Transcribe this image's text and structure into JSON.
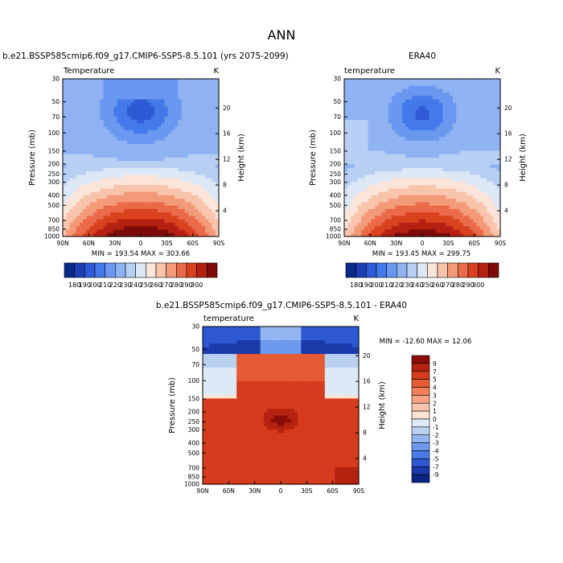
{
  "main_title": "ANN",
  "chart_data": [
    {
      "type": "heatmap",
      "panel": "model",
      "title": "b.e21.BSSP585cmip6.f09_g17.CMIP6-SSP5-8.5.101 (yrs 2075-2099)",
      "left_label": "Temperature",
      "right_label": "K",
      "ylabel": "Pressure (mb)",
      "ylabel_right": "Height (km)",
      "x_ticks": [
        "90N",
        "60N",
        "30N",
        "0",
        "30S",
        "60S",
        "90S"
      ],
      "y_ticks": [
        "30",
        "50",
        "70",
        "100",
        "150",
        "200",
        "250",
        "300",
        "400",
        "500",
        "700",
        "850",
        "1000"
      ],
      "y2_ticks": [
        "20",
        "16",
        "12",
        "8",
        "4"
      ],
      "stats": "MIN = 193.54  MAX = 303.66",
      "min": 193.54,
      "max": 303.66
    },
    {
      "type": "heatmap",
      "panel": "obs",
      "title": "ERA40",
      "left_label": "temperature",
      "right_label": "K",
      "ylabel": "Pressure (mb)",
      "ylabel_right": "Height (km)",
      "x_ticks": [
        "90N",
        "60N",
        "30N",
        "0",
        "30S",
        "60S",
        "90S"
      ],
      "y_ticks": [
        "30",
        "50",
        "70",
        "100",
        "150",
        "200",
        "250",
        "300",
        "400",
        "500",
        "700",
        "850",
        "1000"
      ],
      "y2_ticks": [
        "20",
        "16",
        "12",
        "8",
        "4"
      ],
      "stats": "MIN = 193.45  MAX = 299.75",
      "min": 193.45,
      "max": 299.75
    },
    {
      "type": "heatmap",
      "panel": "diff",
      "title": "b.e21.BSSP585cmip6.f09_g17.CMIP6-SSP5-8.5.101 - ERA40",
      "left_label": "temperature",
      "right_label": "K",
      "ylabel": "Pressure (mb)",
      "ylabel_right": "Height (km)",
      "x_ticks": [
        "90N",
        "60N",
        "30N",
        "0",
        "30S",
        "60S",
        "90S"
      ],
      "y_ticks": [
        "30",
        "50",
        "70",
        "100",
        "150",
        "200",
        "250",
        "300",
        "400",
        "500",
        "700",
        "850",
        "1000"
      ],
      "y2_ticks": [
        "20",
        "16",
        "12",
        "8",
        "4"
      ],
      "stats": "MIN = -12.60  MAX =  12.06",
      "min": -12.6,
      "max": 12.06
    }
  ],
  "colorbar_top": {
    "labels": [
      "180",
      "190",
      "200",
      "210",
      "220",
      "230",
      "240",
      "250",
      "260",
      "270",
      "280",
      "290",
      "300"
    ],
    "colors": [
      "#0a2a8a",
      "#1e3fb3",
      "#2f5ad6",
      "#4479ea",
      "#6a98f0",
      "#8fb3f2",
      "#b7cff2",
      "#dde8f6",
      "#fbe5da",
      "#f8c4ac",
      "#f39a79",
      "#ea6a4a",
      "#d9421f",
      "#b42012",
      "#7d0c08"
    ]
  },
  "colorbar_diff": {
    "labels": [
      "9",
      "7",
      "5",
      "4",
      "3",
      "2",
      "1",
      "0",
      "-1",
      "-2",
      "-3",
      "-4",
      "-5",
      "-7",
      "-9"
    ],
    "colors": [
      "#8b0c08",
      "#b52210",
      "#d53b1c",
      "#e65a34",
      "#f07f5a",
      "#f6a283",
      "#f9c4ac",
      "#fce2d4",
      "#dce9f6",
      "#b9d0f1",
      "#93b6f0",
      "#6d99ee",
      "#4a7ae6",
      "#2e58d2",
      "#1a3aaa",
      "#0b2582"
    ]
  }
}
